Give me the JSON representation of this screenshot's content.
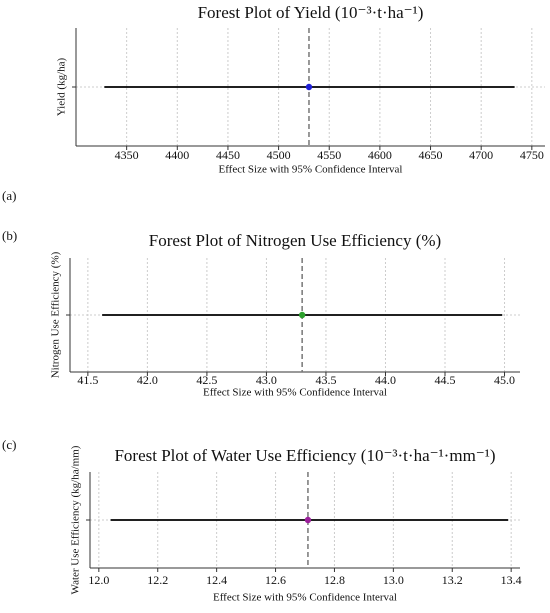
{
  "chart_data": [
    {
      "type": "forest",
      "panel": "(a)",
      "title": "Forest Plot of Yield (10⁻³·t·ha⁻¹)",
      "xlabel": "Effect Size with 95% Confidence Interval",
      "ylabel": "Yield (kg/ha)",
      "values": [
        4530
      ],
      "lower": [
        4328
      ],
      "upper": [
        4733
      ],
      "color": "#1f1fd6",
      "xlim": [
        4300,
        4763
      ],
      "xticks": [
        4350,
        4400,
        4450,
        4500,
        4550,
        4600,
        4650,
        4700,
        4750
      ],
      "grid": true
    },
    {
      "type": "forest",
      "panel": "(b)",
      "title": "Forest Plot of Nitrogen Use Efficiency (%)",
      "xlabel": "Effect Size with 95% Confidence Interval",
      "ylabel": "Nitrogen Use Efficiency (%)",
      "values": [
        43.3
      ],
      "lower": [
        41.62
      ],
      "upper": [
        44.98
      ],
      "color": "#2ca02c",
      "xlim": [
        41.35,
        45.13
      ],
      "xticks": [
        41.5,
        {
          "value": 42,
          "label": "42.0"
        },
        42.5,
        {
          "value": 43,
          "label": "43.0"
        },
        43.5,
        {
          "value": 44,
          "label": "44.0"
        },
        44.5,
        {
          "value": 45,
          "label": "45.0"
        }
      ],
      "grid": true
    },
    {
      "type": "forest",
      "panel": "(c)",
      "title": "Forest Plot of Water Use Efficiency (10⁻³·t·ha⁻¹·mm⁻¹)",
      "xlabel": "Effect Size with 95% Confidence Interval",
      "ylabel": "Water Use Efficiency (kg/ha/mm)",
      "values": [
        12.71
      ],
      "lower": [
        12.04
      ],
      "upper": [
        13.39
      ],
      "color": "#9b1f9b",
      "xlim": [
        11.97,
        13.43
      ],
      "xticks": [
        {
          "value": 12,
          "label": "12.0"
        },
        12.2,
        12.4,
        12.6,
        12.8,
        {
          "value": 13,
          "label": "13.0"
        },
        13.2,
        13.4
      ],
      "grid": true
    }
  ]
}
